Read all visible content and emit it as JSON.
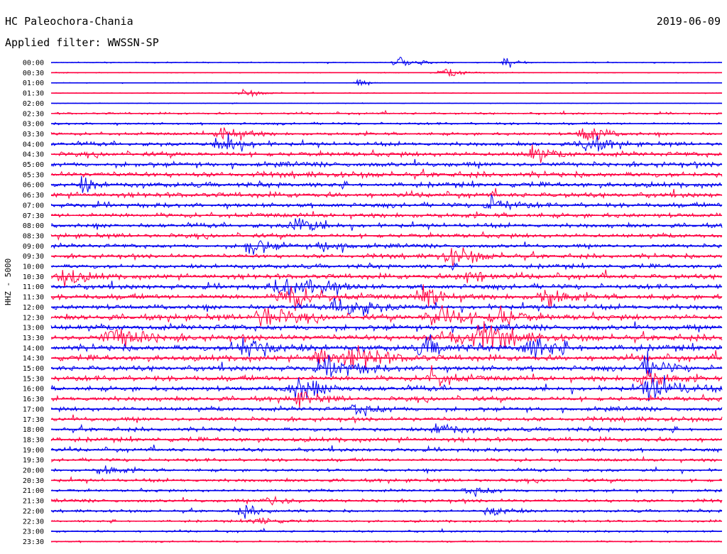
{
  "header": {
    "station": "HC Paleochora-Chania",
    "date": "2019-06-09",
    "filter_label": "Applied filter: WWSSN-SP"
  },
  "chart_data": {
    "type": "line",
    "title": "HC Paleochora-Chania",
    "subtitle": "Applied filter: WWSSN-SP",
    "ylabel": "HHZ - 5000",
    "xlabel": "",
    "colors": [
      "#0000ee",
      "#ff0040"
    ],
    "row_labels": [
      "00:00",
      "00:30",
      "01:00",
      "01:30",
      "02:00",
      "02:30",
      "03:00",
      "03:30",
      "04:00",
      "04:30",
      "05:00",
      "05:30",
      "06:00",
      "06:30",
      "07:00",
      "07:30",
      "08:00",
      "08:30",
      "09:00",
      "09:30",
      "10:00",
      "10:30",
      "11:00",
      "11:30",
      "12:00",
      "12:30",
      "13:00",
      "13:30",
      "14:00",
      "14:30",
      "15:00",
      "15:30",
      "16:00",
      "16:30",
      "17:00",
      "17:30",
      "18:00",
      "18:30",
      "19:00",
      "19:30",
      "20:00",
      "20:30",
      "21:00",
      "21:30",
      "22:00",
      "22:30",
      "23:00",
      "23:30"
    ],
    "row_noise": [
      0.6,
      0.5,
      0.4,
      0.5,
      0.4,
      1.2,
      1.4,
      1.8,
      2.4,
      2.8,
      3.0,
      3.2,
      3.0,
      3.0,
      2.8,
      2.8,
      2.6,
      2.6,
      2.4,
      2.6,
      2.6,
      3.0,
      3.0,
      3.2,
      3.0,
      3.4,
      3.4,
      3.6,
      3.6,
      3.4,
      3.2,
      3.2,
      3.0,
      2.8,
      2.6,
      2.6,
      2.4,
      2.6,
      2.2,
      2.0,
      1.8,
      2.0,
      1.6,
      2.0,
      1.6,
      1.4,
      1.2,
      1.0
    ],
    "events": [
      {
        "row": 0,
        "t": 0.52,
        "amp": 9,
        "dur": 0.02
      },
      {
        "row": 0,
        "t": 0.68,
        "amp": 11,
        "dur": 0.01
      },
      {
        "row": 1,
        "t": 0.59,
        "amp": 7,
        "dur": 0.02
      },
      {
        "row": 2,
        "t": 0.46,
        "amp": 5,
        "dur": 0.01
      },
      {
        "row": 3,
        "t": 0.29,
        "amp": 5,
        "dur": 0.02
      },
      {
        "row": 7,
        "t": 0.26,
        "amp": 14,
        "dur": 0.02
      },
      {
        "row": 7,
        "t": 0.8,
        "amp": 14,
        "dur": 0.02
      },
      {
        "row": 8,
        "t": 0.26,
        "amp": 16,
        "dur": 0.02
      },
      {
        "row": 8,
        "t": 0.8,
        "amp": 14,
        "dur": 0.02
      },
      {
        "row": 9,
        "t": 0.72,
        "amp": 10,
        "dur": 0.02
      },
      {
        "row": 12,
        "t": 0.05,
        "amp": 14,
        "dur": 0.01
      },
      {
        "row": 14,
        "t": 0.66,
        "amp": 12,
        "dur": 0.02
      },
      {
        "row": 16,
        "t": 0.37,
        "amp": 13,
        "dur": 0.02
      },
      {
        "row": 18,
        "t": 0.3,
        "amp": 14,
        "dur": 0.02
      },
      {
        "row": 18,
        "t": 0.41,
        "amp": 10,
        "dur": 0.02
      },
      {
        "row": 19,
        "t": 0.6,
        "amp": 12,
        "dur": 0.03
      },
      {
        "row": 21,
        "t": 0.02,
        "amp": 13,
        "dur": 0.02
      },
      {
        "row": 21,
        "t": 0.62,
        "amp": 11,
        "dur": 0.02
      },
      {
        "row": 22,
        "t": 0.35,
        "amp": 13,
        "dur": 0.03
      },
      {
        "row": 22,
        "t": 0.4,
        "amp": 12,
        "dur": 0.02
      },
      {
        "row": 23,
        "t": 0.36,
        "amp": 16,
        "dur": 0.03
      },
      {
        "row": 23,
        "t": 0.56,
        "amp": 18,
        "dur": 0.02
      },
      {
        "row": 23,
        "t": 0.74,
        "amp": 16,
        "dur": 0.02
      },
      {
        "row": 24,
        "t": 0.44,
        "amp": 14,
        "dur": 0.03
      },
      {
        "row": 25,
        "t": 0.32,
        "amp": 14,
        "dur": 0.03
      },
      {
        "row": 25,
        "t": 0.58,
        "amp": 18,
        "dur": 0.03
      },
      {
        "row": 25,
        "t": 0.67,
        "amp": 14,
        "dur": 0.02
      },
      {
        "row": 27,
        "t": 0.1,
        "amp": 18,
        "dur": 0.03
      },
      {
        "row": 27,
        "t": 0.6,
        "amp": 14,
        "dur": 0.03
      },
      {
        "row": 27,
        "t": 0.65,
        "amp": 16,
        "dur": 0.03
      },
      {
        "row": 28,
        "t": 0.29,
        "amp": 16,
        "dur": 0.03
      },
      {
        "row": 28,
        "t": 0.56,
        "amp": 14,
        "dur": 0.02
      },
      {
        "row": 28,
        "t": 0.72,
        "amp": 14,
        "dur": 0.03
      },
      {
        "row": 29,
        "t": 0.4,
        "amp": 13,
        "dur": 0.02
      },
      {
        "row": 29,
        "t": 0.46,
        "amp": 16,
        "dur": 0.03
      },
      {
        "row": 30,
        "t": 0.42,
        "amp": 14,
        "dur": 0.03
      },
      {
        "row": 30,
        "t": 0.89,
        "amp": 16,
        "dur": 0.02
      },
      {
        "row": 31,
        "t": 0.57,
        "amp": 14,
        "dur": 0.02
      },
      {
        "row": 31,
        "t": 0.89,
        "amp": 14,
        "dur": 0.02
      },
      {
        "row": 32,
        "t": 0.37,
        "amp": 16,
        "dur": 0.03
      },
      {
        "row": 32,
        "t": 0.9,
        "amp": 18,
        "dur": 0.03
      },
      {
        "row": 33,
        "t": 0.37,
        "amp": 10,
        "dur": 0.02
      },
      {
        "row": 34,
        "t": 0.46,
        "amp": 9,
        "dur": 0.02
      },
      {
        "row": 36,
        "t": 0.58,
        "amp": 9,
        "dur": 0.02
      },
      {
        "row": 40,
        "t": 0.08,
        "amp": 7,
        "dur": 0.02
      },
      {
        "row": 42,
        "t": 0.63,
        "amp": 7,
        "dur": 0.02
      },
      {
        "row": 43,
        "t": 0.33,
        "amp": 8,
        "dur": 0.02
      },
      {
        "row": 44,
        "t": 0.29,
        "amp": 8,
        "dur": 0.02
      },
      {
        "row": 44,
        "t": 0.66,
        "amp": 8,
        "dur": 0.02
      },
      {
        "row": 45,
        "t": 0.31,
        "amp": 6,
        "dur": 0.02
      }
    ]
  }
}
